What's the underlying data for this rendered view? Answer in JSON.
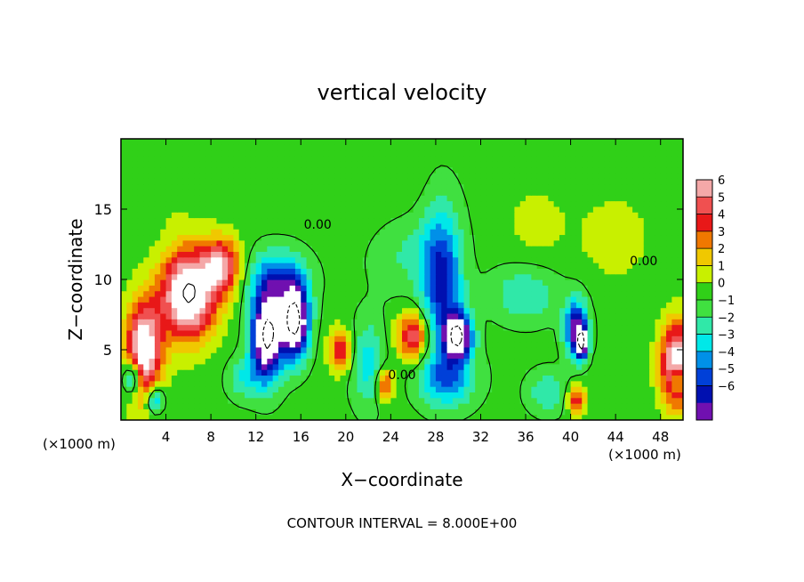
{
  "chart_data": {
    "type": "heatmap",
    "title": "vertical velocity",
    "xlabel": "X−coordinate",
    "ylabel": "Z−coordinate",
    "x_unit_left": "(×1000 m)",
    "x_unit_right": "(×1000 m)",
    "xlim": [
      0,
      50
    ],
    "ylim": [
      0,
      20
    ],
    "x_ticks": [
      4,
      8,
      12,
      16,
      20,
      24,
      28,
      32,
      36,
      40,
      44,
      48
    ],
    "y_ticks": [
      5,
      10,
      15
    ],
    "colorbar": {
      "ticks": [
        6,
        5,
        4,
        3,
        2,
        1,
        0,
        -1,
        -2,
        -3,
        -4,
        -5,
        -6
      ],
      "tick_labels": [
        "6",
        "5",
        "4",
        "3",
        "2",
        "1",
        "0",
        "−1",
        "−2",
        "−3",
        "−4",
        "−5",
        "−6"
      ],
      "colors": [
        "#f4a8a8",
        "#f05050",
        "#e81818",
        "#f07800",
        "#f0c800",
        "#c8f000",
        "#30d018",
        "#40e040",
        "#30e8a8",
        "#00e8e8",
        "#0090e8",
        "#0040d8",
        "#0010b0",
        "#7010b0"
      ],
      "range": [
        -6,
        6
      ]
    },
    "contour_labels": [
      {
        "text": "0.00",
        "x": 17.5,
        "y": 13.6
      },
      {
        "text": "0.00",
        "x": 46.5,
        "y": 11.0
      },
      {
        "text": "0.00",
        "x": 25.0,
        "y": 2.9
      }
    ],
    "annotation": "CONTOUR INTERVAL = 8.000E+00",
    "grid": false,
    "features": [
      {
        "x": 6,
        "z": 9,
        "w": 8.0,
        "sx": 2.4,
        "sz": 3.2
      },
      {
        "x": 9,
        "z": 11,
        "w": 5.0,
        "sx": 1.6,
        "sz": 2.0
      },
      {
        "x": 2,
        "z": 5,
        "w": 7.0,
        "sx": 1.6,
        "sz": 3.5
      },
      {
        "x": 1,
        "z": 3,
        "w": -5.0,
        "sx": 0.8,
        "sz": 1.2
      },
      {
        "x": 3,
        "z": 1.5,
        "w": -4.0,
        "sx": 0.8,
        "sz": 1.0
      },
      {
        "x": 13,
        "z": 6,
        "w": -9.0,
        "sx": 1.4,
        "sz": 3.0
      },
      {
        "x": 15.5,
        "z": 7,
        "w": -9.0,
        "sx": 1.2,
        "sz": 2.5
      },
      {
        "x": 14,
        "z": 10,
        "w": -4.0,
        "sx": 2.5,
        "sz": 2.0
      },
      {
        "x": 11,
        "z": 3,
        "w": -2.0,
        "sx": 1.5,
        "sz": 1.5
      },
      {
        "x": 19.5,
        "z": 5,
        "w": 4.0,
        "sx": 1.0,
        "sz": 1.5
      },
      {
        "x": 22,
        "z": 4,
        "w": -2.5,
        "sx": 1.5,
        "sz": 3.0
      },
      {
        "x": 26,
        "z": 6,
        "w": 5.0,
        "sx": 1.4,
        "sz": 1.7
      },
      {
        "x": 23.5,
        "z": 2.5,
        "w": 4.0,
        "sx": 0.8,
        "sz": 1.2
      },
      {
        "x": 28.5,
        "z": 10,
        "w": -5.0,
        "sx": 1.8,
        "sz": 5.0
      },
      {
        "x": 30,
        "z": 6,
        "w": -8.0,
        "sx": 1.2,
        "sz": 1.6
      },
      {
        "x": 29,
        "z": 3,
        "w": -3.5,
        "sx": 2.5,
        "sz": 2.0
      },
      {
        "x": 36,
        "z": 9,
        "w": -2.0,
        "sx": 3.0,
        "sz": 2.0
      },
      {
        "x": 40.5,
        "z": 6.5,
        "w": -6.0,
        "sx": 1.0,
        "sz": 2.0
      },
      {
        "x": 41,
        "z": 5.5,
        "w": -7.0,
        "sx": 0.5,
        "sz": 1.0
      },
      {
        "x": 38,
        "z": 2,
        "w": -2.0,
        "sx": 1.8,
        "sz": 1.5
      },
      {
        "x": 40.5,
        "z": 1.5,
        "w": 4.0,
        "sx": 0.8,
        "sz": 1.0
      },
      {
        "x": 44,
        "z": 13,
        "w": 1.2,
        "sx": 3.0,
        "sz": 3.0
      },
      {
        "x": 49.5,
        "z": 4,
        "w": 7.0,
        "sx": 1.5,
        "sz": 3.0
      },
      {
        "x": 49.5,
        "z": 3,
        "w": -4.0,
        "sx": 0.6,
        "sz": 1.0
      },
      {
        "x": 25,
        "z": 12,
        "w": -1.2,
        "sx": 3.0,
        "sz": 3.0
      },
      {
        "x": 37,
        "z": 14,
        "w": 0.9,
        "sx": 3.0,
        "sz": 3.0
      },
      {
        "x": 22,
        "z": 16,
        "w": 0.6,
        "sx": 5.0,
        "sz": 3.0
      },
      {
        "x": 4,
        "z": 16,
        "w": 0.5,
        "sx": 3.0,
        "sz": 2.0
      }
    ]
  }
}
